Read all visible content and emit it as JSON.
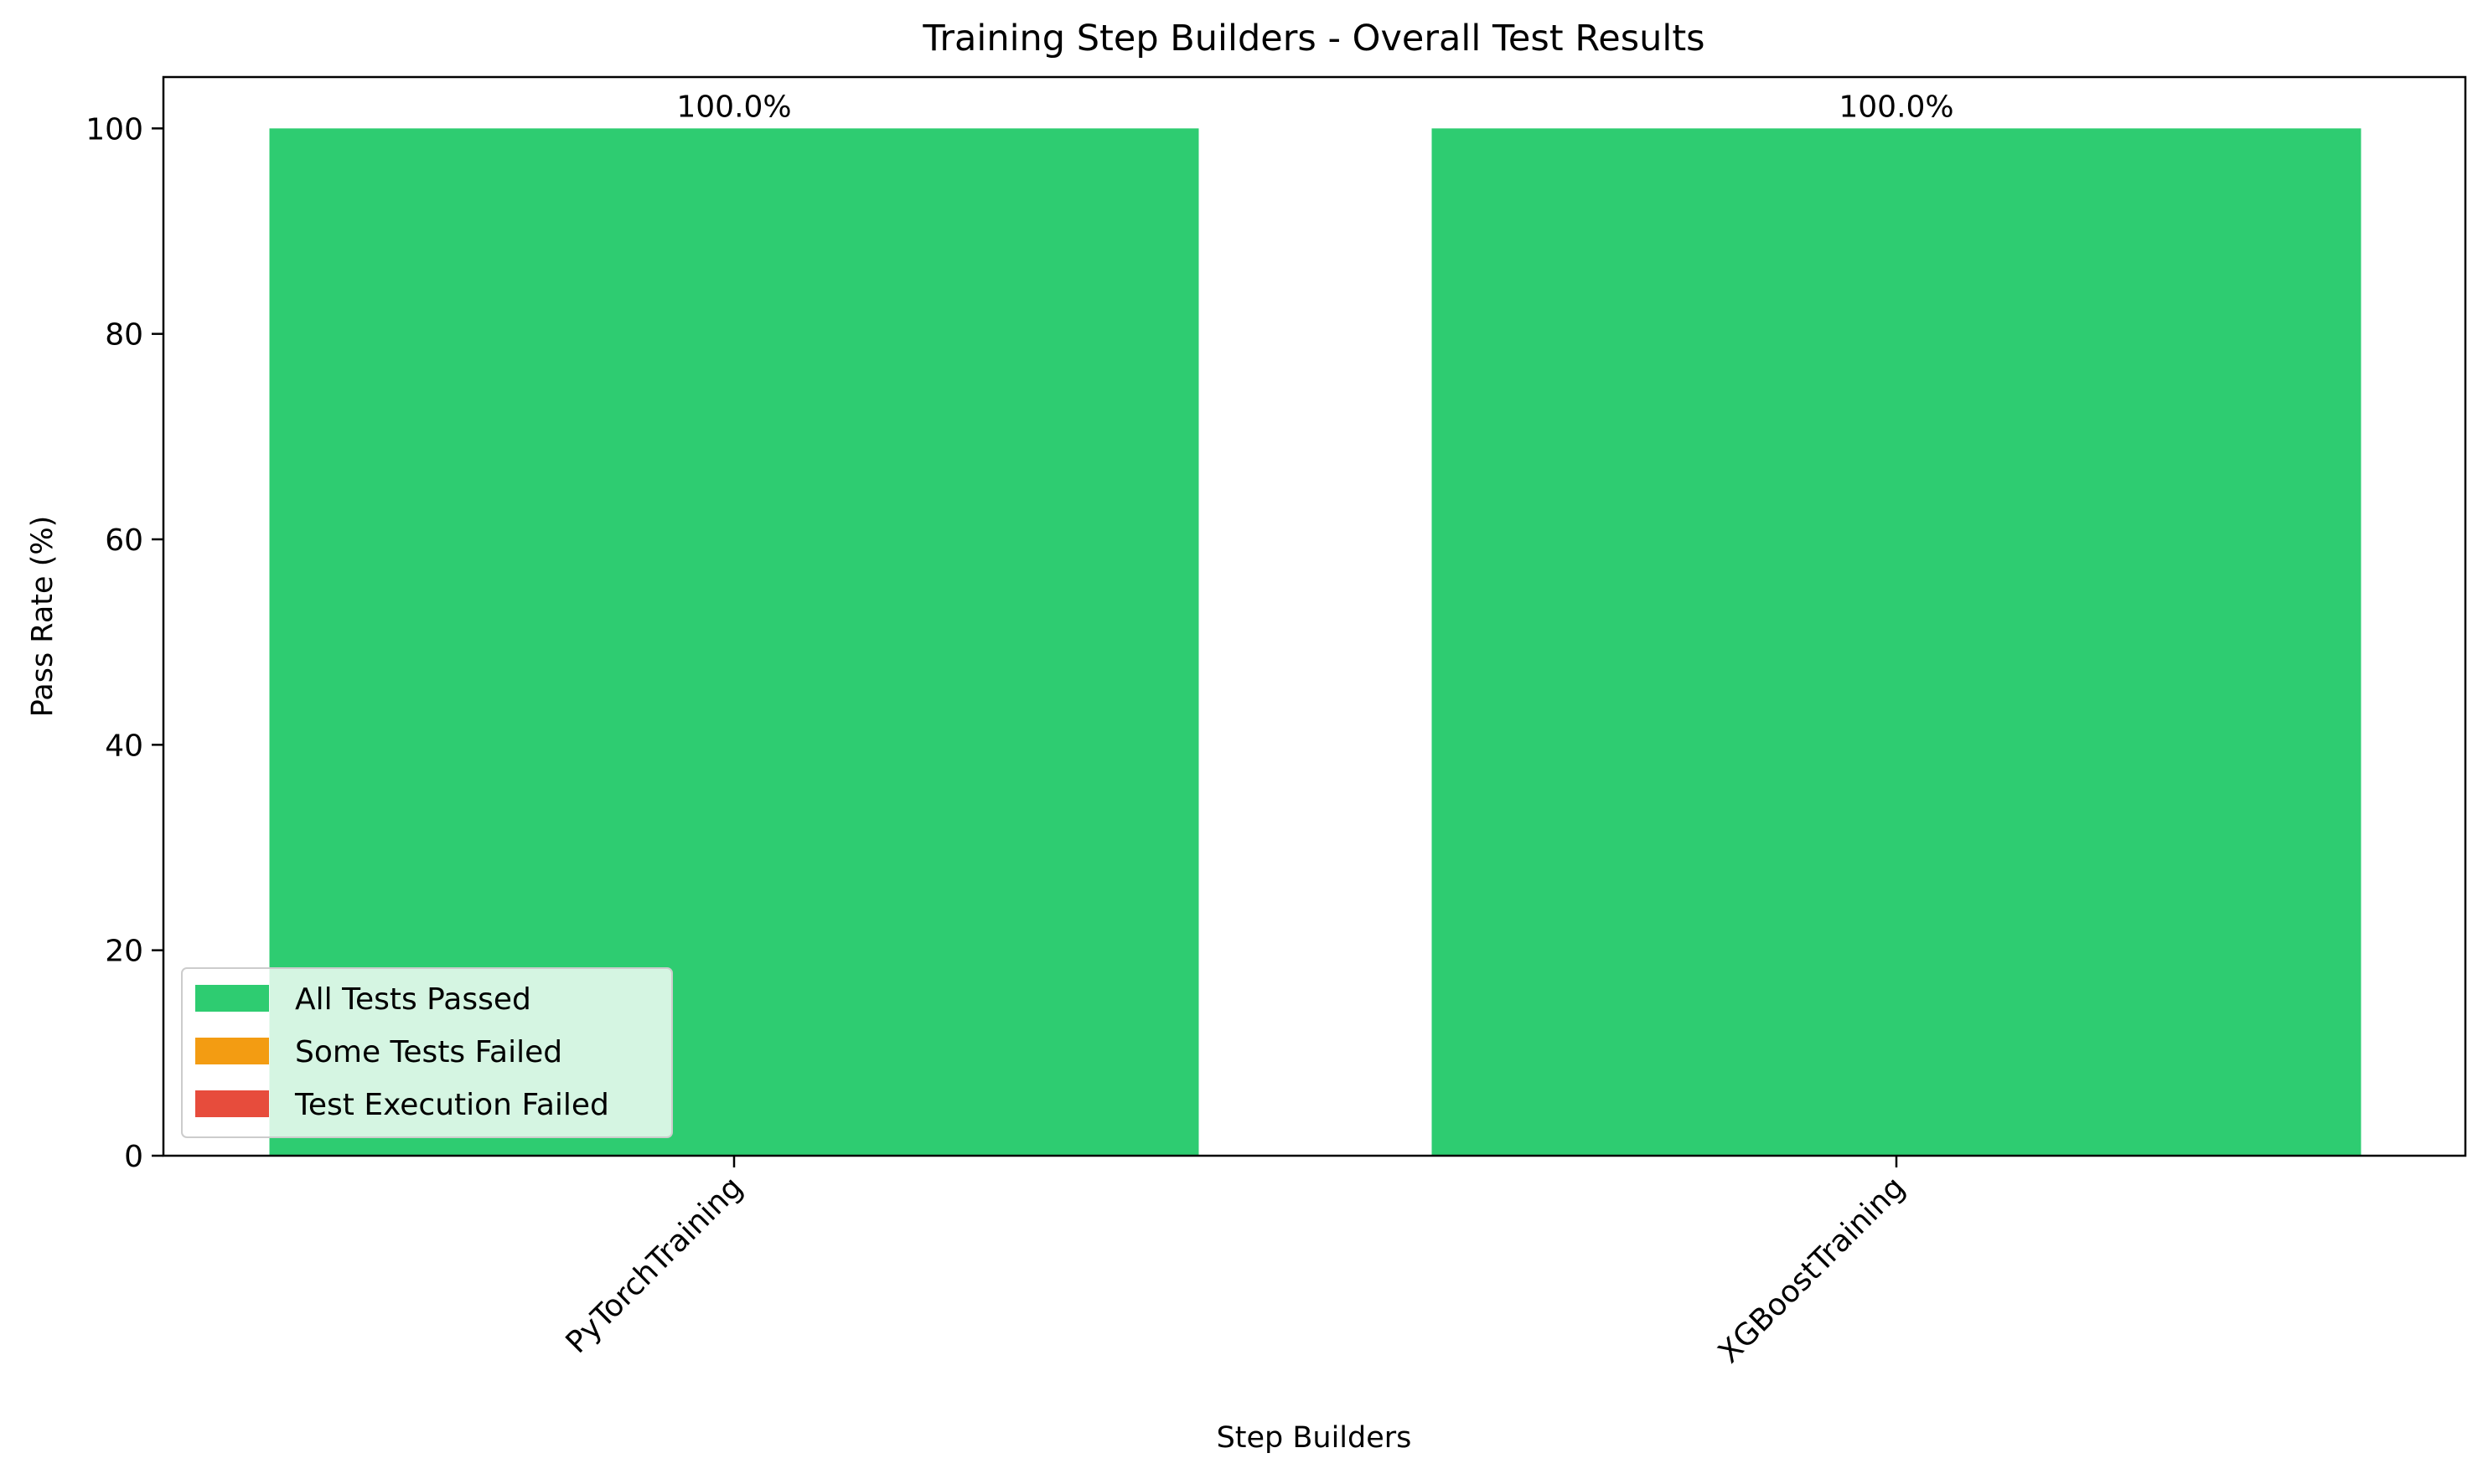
{
  "chart_data": {
    "type": "bar",
    "title": "Training Step Builders - Overall Test Results",
    "xlabel": "Step Builders",
    "ylabel": "Pass Rate (%)",
    "categories": [
      "PyTorchTraining",
      "XGBoostTraining"
    ],
    "values": [
      100.0,
      100.0
    ],
    "data_labels": [
      "100.0%",
      "100.0%"
    ],
    "bar_colors": [
      "#2ecc71",
      "#2ecc71"
    ],
    "ylim": [
      0,
      105
    ],
    "yticks": [
      0,
      20,
      40,
      60,
      80,
      100
    ],
    "grid": false,
    "legend": {
      "placement": "lower-left",
      "entries": [
        {
          "label": "All Tests Passed",
          "color": "#2ecc71"
        },
        {
          "label": "Some Tests Failed",
          "color": "#f39c12"
        },
        {
          "label": "Test Execution Failed",
          "color": "#e74c3c"
        }
      ]
    }
  }
}
